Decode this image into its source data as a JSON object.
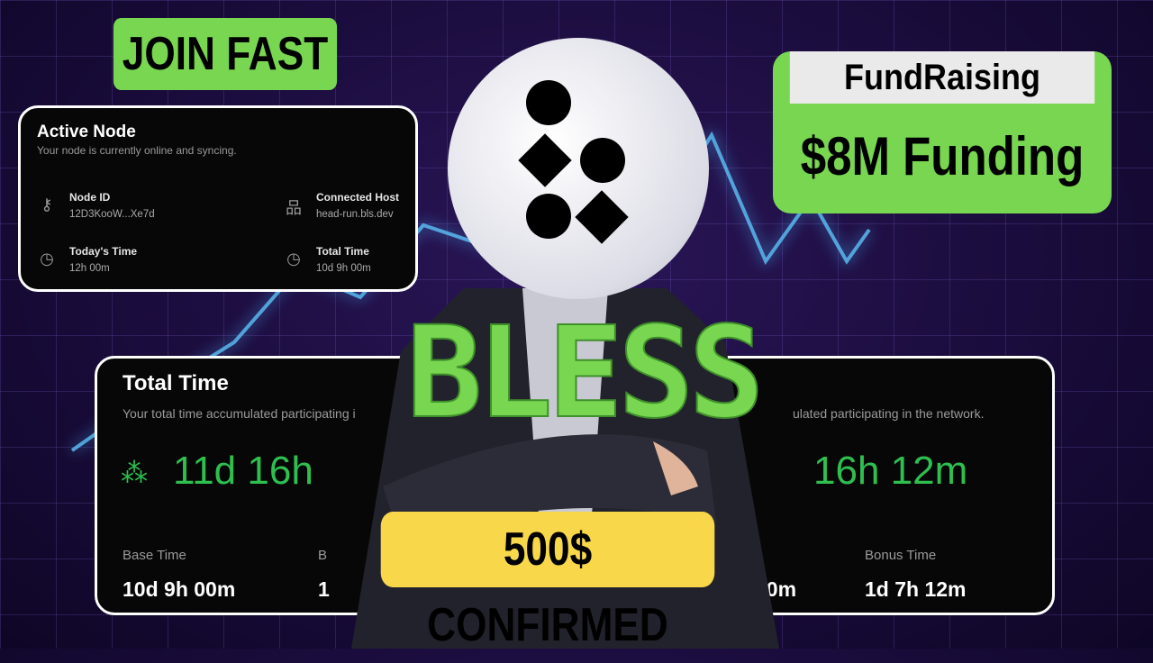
{
  "join_badge": "JOIN FAST",
  "fundraising": {
    "title": "FundRaising",
    "amount": "$8M Funding"
  },
  "confirmed_badge": "500$ CONFIRMED",
  "brand": "BLESS",
  "active_node": {
    "title": "Active Node",
    "subtitle": "Your node is currently online and syncing.",
    "items": [
      {
        "label": "Node ID",
        "value": "12D3KooW...Xe7d",
        "icon": "key-icon"
      },
      {
        "label": "Connected Host",
        "value": "head-run.bls.dev",
        "icon": "network-icon"
      },
      {
        "label": "Today's Time",
        "value": "12h 00m",
        "icon": "clock-icon"
      },
      {
        "label": "Total Time",
        "value": "10d 9h 00m",
        "icon": "clock-icon"
      }
    ]
  },
  "total_time": {
    "title": "Total Time",
    "subtitle_left": "Your total time accumulated participating i",
    "subtitle_right": "ulated participating in the network.",
    "big_left": "11d 16h",
    "big_right": "16h 12m",
    "base_label": "Base Time",
    "base_value": "10d 9h 00m",
    "b_label": "B",
    "b_value": "1",
    "mid_value": "00m",
    "bonus_label": "Bonus Time",
    "bonus_value": "1d 7h 12m"
  },
  "colors": {
    "accent_green": "#78d651",
    "time_green": "#2fbf4f",
    "yellow": "#f8d84a",
    "bg": "#1a0c3c"
  }
}
